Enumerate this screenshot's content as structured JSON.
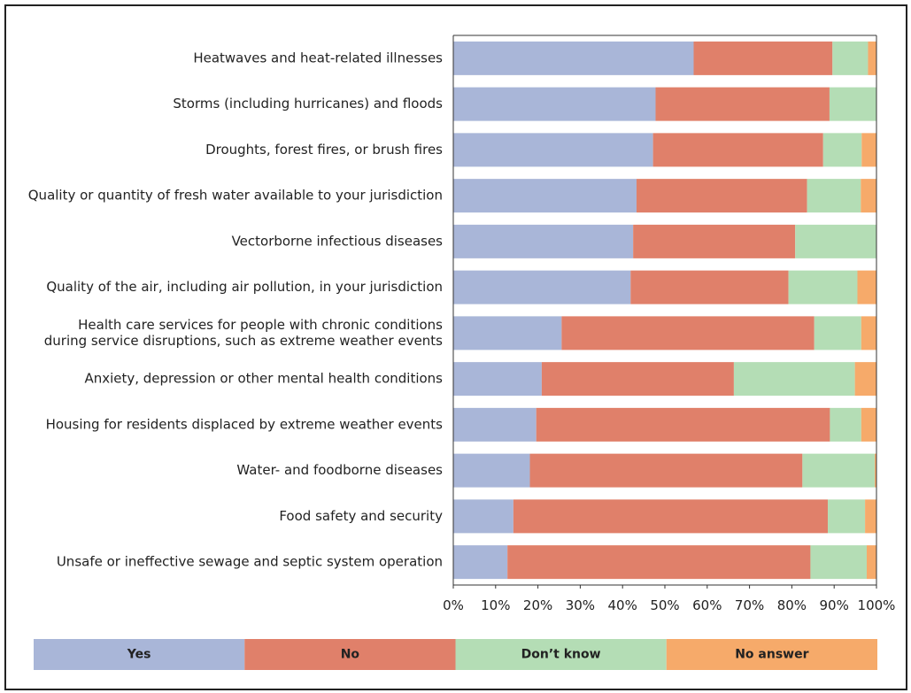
{
  "chart_data": {
    "type": "bar",
    "orientation": "horizontal",
    "stacked": true,
    "categories": [
      "Heatwaves and heat-related illnesses",
      "Storms (including hurricanes) and floods",
      "Droughts, forest fires, or brush fires",
      "Quality or quantity of fresh water available to your jurisdiction",
      "Vectorborne infectious diseases",
      "Quality of the air, including air pollution, in your jurisdiction",
      "Health care services for people with chronic conditions\nduring service disruptions, such as extreme weather events",
      "Anxiety, depression or other mental health conditions",
      "Housing for residents displaced by extreme weather events",
      "Water- and foodborne diseases",
      "Food safety and security",
      "Unsafe or ineffective sewage and septic system operation"
    ],
    "series": [
      {
        "name": "Yes",
        "color": "#a9b6d8",
        "values": [
          56.8,
          47.8,
          47.2,
          43.3,
          42.5,
          41.9,
          25.6,
          20.9,
          19.6,
          18.1,
          14.2,
          12.8
        ]
      },
      {
        "name": "No",
        "color": "#e0806a",
        "values": [
          32.8,
          41.1,
          40.2,
          40.3,
          38.3,
          37.3,
          59.7,
          45.4,
          69.4,
          64.4,
          74.3,
          71.6
        ]
      },
      {
        "name": "Don’t know",
        "color": "#b4ddb5",
        "values": [
          8.4,
          11.1,
          9.1,
          12.7,
          19.2,
          16.3,
          11.1,
          28.6,
          7.4,
          17.1,
          8.8,
          13.3
        ]
      },
      {
        "name": "No answer",
        "color": "#f6aa6a",
        "values": [
          2.0,
          0.0,
          3.5,
          3.7,
          0.0,
          4.5,
          3.6,
          5.1,
          3.6,
          0.4,
          2.7,
          2.3
        ]
      }
    ],
    "x_ticks": [
      "0%",
      "10%",
      "20%",
      "30%",
      "40%",
      "50%",
      "60%",
      "70%",
      "80%",
      "90%",
      "100%"
    ],
    "xlim": [
      0,
      100
    ],
    "grid": false,
    "legend_position": "bottom"
  }
}
